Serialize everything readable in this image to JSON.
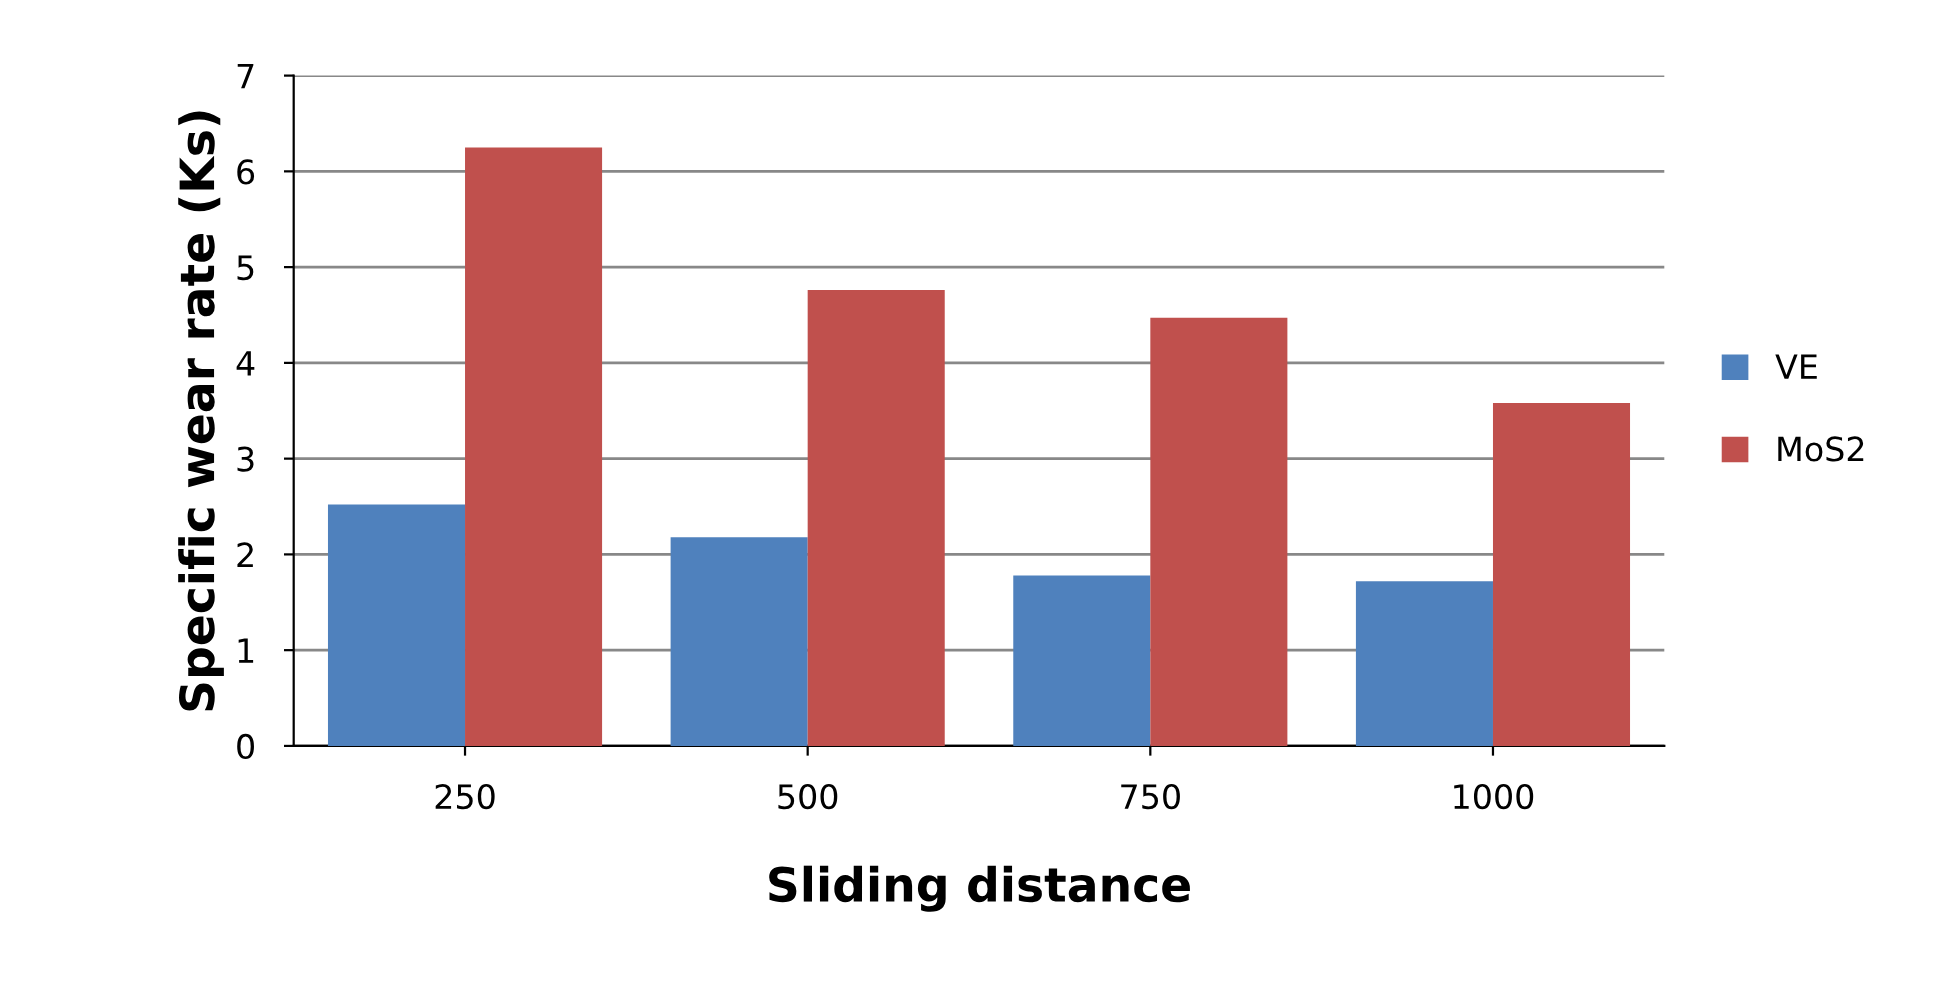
{
  "chart_data": {
    "type": "bar",
    "xlabel": "Sliding distance",
    "ylabel": "Specific wear rate (Ks)",
    "categories": [
      "250",
      "500",
      "750",
      "1000"
    ],
    "series": [
      {
        "name": "VE",
        "color": "#4f81bd",
        "values": [
          2.52,
          2.18,
          1.78,
          1.72
        ]
      },
      {
        "name": "MoS2",
        "color": "#c0504d",
        "values": [
          6.25,
          4.76,
          4.47,
          3.58
        ]
      }
    ],
    "ylim": [
      0,
      7
    ],
    "yticks": [
      0,
      1,
      2,
      3,
      4,
      5,
      6,
      7
    ],
    "grid": "y",
    "legend": "right"
  }
}
